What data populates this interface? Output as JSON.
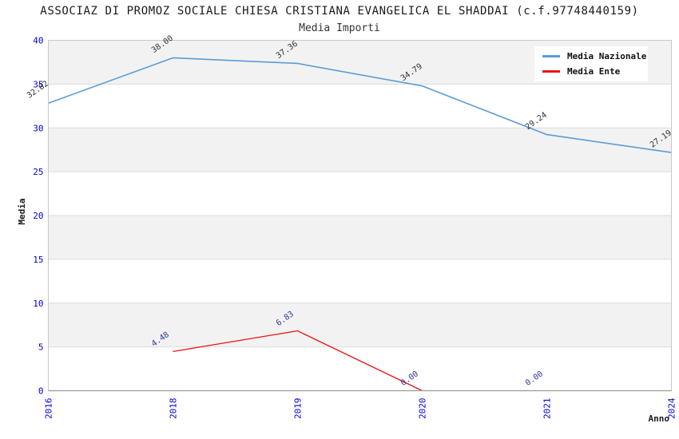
{
  "chart_data": {
    "type": "line",
    "title": "ASSOCIAZ DI PROMOZ SOCIALE CHIESA CRISTIANA EVANGELICA EL SHADDAI (c.f.97748440159)",
    "subtitle": "Media Importi",
    "xlabel": "Anno",
    "ylabel": "Media",
    "categories": [
      "2016",
      "2018",
      "2019",
      "2020",
      "2021",
      "2024"
    ],
    "ylim": [
      0,
      40
    ],
    "yticks": [
      0,
      5,
      10,
      15,
      20,
      25,
      30,
      35,
      40
    ],
    "grid": "horizontal-gridlines-with-alternating-bands",
    "legend_position": "top-right",
    "colors": {
      "tick_label": "#0000dd",
      "grid_line": "#dcdcdc",
      "band_fill": "#f2f2f2",
      "plot_border": "#c8c8c8",
      "axis_line": "#999999",
      "axis_title": "#1a1a1a"
    },
    "series": [
      {
        "name": "Media Nazionale",
        "color": "#5b9bd5",
        "label_color": "#333333",
        "values": [
          32.82,
          38.0,
          37.36,
          34.79,
          29.24,
          27.19
        ],
        "labels": [
          "32.82",
          "38.00",
          "37.36",
          "34.79",
          "29.24",
          "27.19"
        ]
      },
      {
        "name": "Media Ente",
        "color": "#ee1111",
        "label_color": "#333399",
        "values": [
          null,
          4.48,
          6.83,
          0.0,
          0.0,
          null
        ],
        "labels": [
          null,
          "4.48",
          "6.83",
          "0.00",
          "0.00",
          null
        ]
      }
    ]
  }
}
